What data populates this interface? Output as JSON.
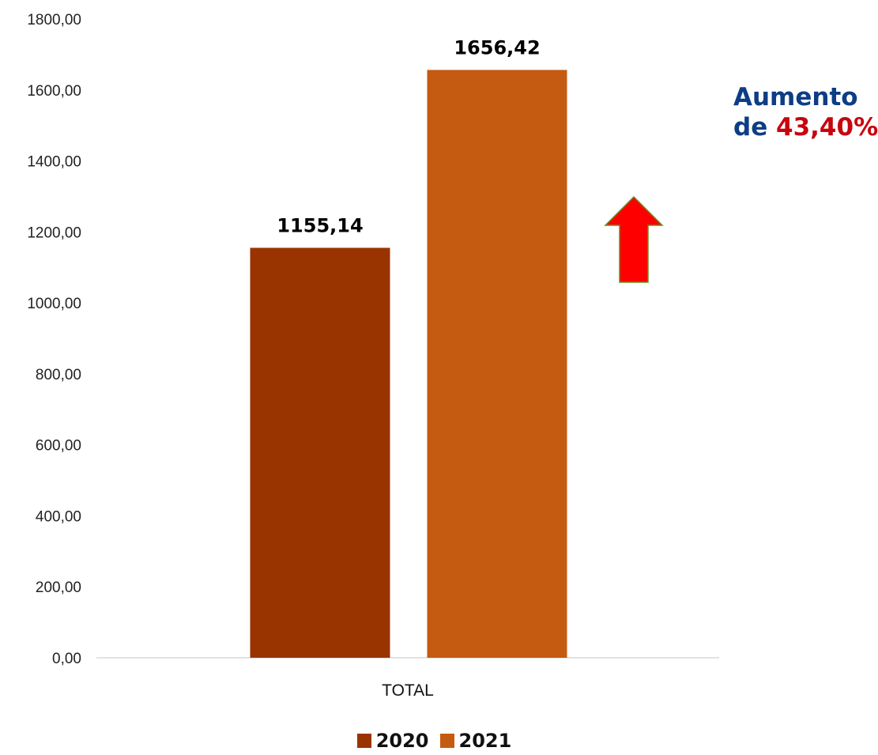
{
  "chart_data": {
    "type": "bar",
    "categories": [
      "TOTAL"
    ],
    "series": [
      {
        "name": "2020",
        "values": [
          1155.14
        ],
        "color": "#993300",
        "label": "1155,14"
      },
      {
        "name": "2021",
        "values": [
          1656.42
        ],
        "color": "#c55a11",
        "label": "1656,42"
      }
    ],
    "ylim": [
      0,
      1800
    ],
    "yticks": [
      "0,00",
      "200,00",
      "400,00",
      "600,00",
      "800,00",
      "1000,00",
      "1200,00",
      "1400,00",
      "1600,00",
      "1800,00"
    ],
    "grid": false,
    "legend_position": "bottom"
  },
  "annotation": {
    "line1": "Aumento",
    "line2_prefix": "de",
    "line2_value": "43,40%",
    "text_color": "#0d3d85",
    "value_color": "#c8040e",
    "arrow": {
      "icon": "up-arrow-icon",
      "fill": "#ff0000",
      "stroke": "#6b8e23"
    }
  },
  "legend": [
    {
      "label": "2020",
      "color": "#993300"
    },
    {
      "label": "2021",
      "color": "#c55a11"
    }
  ]
}
